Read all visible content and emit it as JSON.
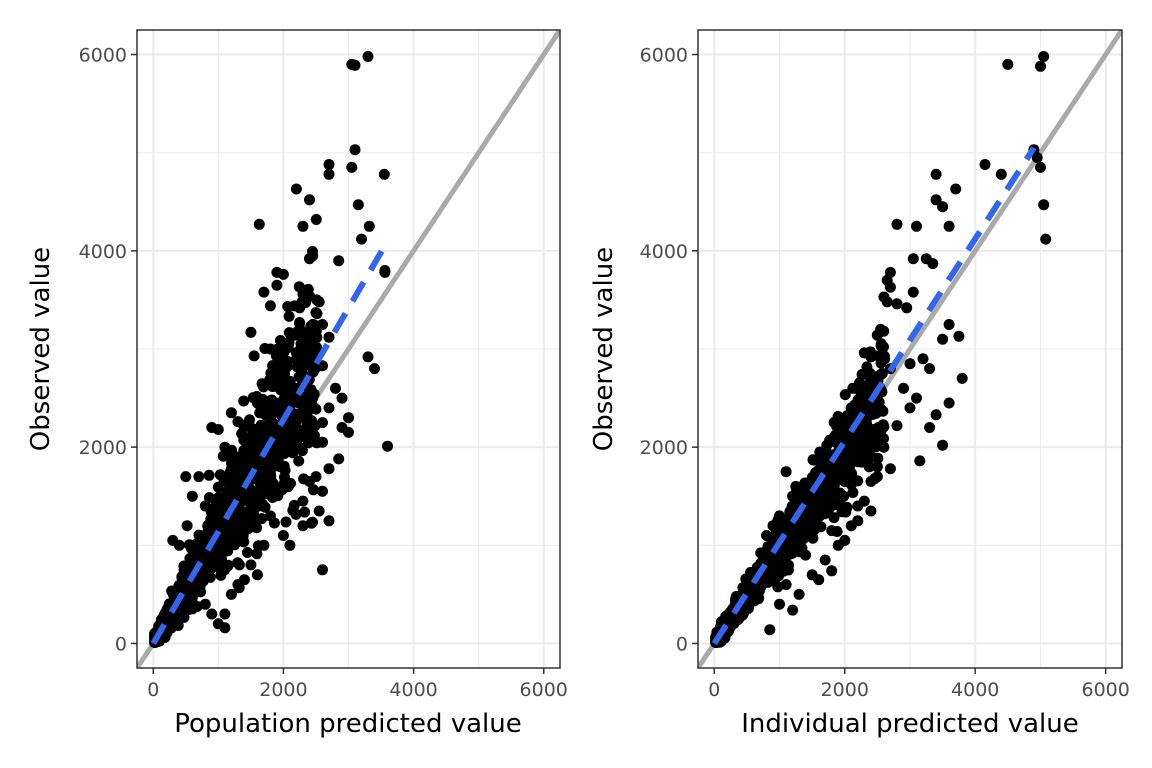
{
  "colors": {
    "points": "#000000",
    "identity_line": "#aaaaaa",
    "fit_line": "#3366ee",
    "grid": "#ebebeb",
    "panel_border": "#333333",
    "tick_text": "#4d4d4d"
  },
  "chart_data": [
    {
      "type": "scatter",
      "xlabel": "Population predicted value",
      "ylabel": "Observed value",
      "xlim": [
        -250,
        6250
      ],
      "ylim": [
        -250,
        6250
      ],
      "xticks": [
        0,
        2000,
        4000,
        6000
      ],
      "yticks": [
        0,
        2000,
        4000,
        6000
      ],
      "grid": true,
      "identity_line": true,
      "fit_line": {
        "style": "dashed",
        "x": [
          0,
          3600
        ],
        "y": [
          0,
          4100
        ]
      },
      "cloud": {
        "n": 1300,
        "x_max": 2500,
        "slope": 1.13,
        "spread": 0.2,
        "seed": 11
      },
      "points": [
        [
          3300,
          5980
        ],
        [
          3050,
          5900
        ],
        [
          3100,
          5890
        ],
        [
          3100,
          5030
        ],
        [
          3050,
          4850
        ],
        [
          2700,
          4880
        ],
        [
          2700,
          4780
        ],
        [
          3550,
          4780
        ],
        [
          2200,
          4630
        ],
        [
          3150,
          4470
        ],
        [
          2400,
          4520
        ],
        [
          3320,
          4250
        ],
        [
          1630,
          4270
        ],
        [
          2300,
          4250
        ],
        [
          3200,
          4120
        ],
        [
          2400,
          3920
        ],
        [
          2450,
          3950
        ],
        [
          2850,
          3900
        ],
        [
          3560,
          3800
        ],
        [
          3560,
          3780
        ],
        [
          1900,
          3780
        ],
        [
          2000,
          3760
        ],
        [
          1900,
          3650
        ],
        [
          1700,
          3580
        ],
        [
          2300,
          3560
        ],
        [
          2400,
          3540
        ],
        [
          2550,
          3480
        ],
        [
          2250,
          3420
        ],
        [
          1800,
          3440
        ],
        [
          2600,
          3250
        ],
        [
          1500,
          3170
        ],
        [
          2700,
          3120
        ],
        [
          2300,
          3100
        ],
        [
          1800,
          3000
        ],
        [
          2200,
          2960
        ],
        [
          1550,
          2930
        ],
        [
          3300,
          2920
        ],
        [
          3400,
          2800
        ],
        [
          2600,
          2830
        ],
        [
          2000,
          2850
        ],
        [
          2800,
          2600
        ],
        [
          2900,
          2500
        ],
        [
          1600,
          2450
        ],
        [
          2700,
          2400
        ],
        [
          3000,
          2300
        ],
        [
          2600,
          2250
        ],
        [
          2900,
          2200
        ],
        [
          3000,
          2150
        ],
        [
          3600,
          2010
        ],
        [
          2600,
          2050
        ],
        [
          2850,
          1880
        ],
        [
          2700,
          1780
        ],
        [
          2500,
          1700
        ],
        [
          2000,
          1620
        ],
        [
          2400,
          1650
        ],
        [
          2600,
          1550
        ],
        [
          2300,
          1450
        ],
        [
          2550,
          1350
        ],
        [
          2700,
          1250
        ],
        [
          2300,
          1200
        ],
        [
          2600,
          750
        ],
        [
          1000,
          920
        ],
        [
          1000,
          980
        ],
        [
          1100,
          760
        ],
        [
          2100,
          1000
        ],
        [
          500,
          1700
        ],
        [
          600,
          1500
        ],
        [
          700,
          1700
        ],
        [
          800,
          1400
        ],
        [
          900,
          2200
        ],
        [
          1000,
          2180
        ],
        [
          1200,
          2350
        ],
        [
          1300,
          2260
        ],
        [
          1100,
          2000
        ],
        [
          400,
          1000
        ],
        [
          300,
          1050
        ],
        [
          520,
          1200
        ],
        [
          1000,
          200
        ],
        [
          1100,
          300
        ],
        [
          1300,
          600
        ],
        [
          1500,
          800
        ],
        [
          1700,
          1000
        ],
        [
          1400,
          650
        ],
        [
          2000,
          1100
        ],
        [
          1800,
          1300
        ],
        [
          1200,
          500
        ],
        [
          1600,
          700
        ],
        [
          900,
          300
        ],
        [
          800,
          400
        ],
        [
          1100,
          160
        ]
      ]
    },
    {
      "type": "scatter",
      "xlabel": "Individual predicted value",
      "ylabel": "Observed value",
      "xlim": [
        -250,
        6250
      ],
      "ylim": [
        -250,
        6250
      ],
      "xticks": [
        0,
        2000,
        4000,
        6000
      ],
      "yticks": [
        0,
        2000,
        4000,
        6000
      ],
      "grid": true,
      "identity_line": true,
      "fit_line": {
        "style": "dashed",
        "x": [
          0,
          4900
        ],
        "y": [
          0,
          5050
        ]
      },
      "cloud": {
        "n": 1300,
        "x_max": 2600,
        "slope": 0.97,
        "spread": 0.12,
        "seed": 23
      },
      "points": [
        [
          5050,
          5980
        ],
        [
          4500,
          5900
        ],
        [
          5000,
          5880
        ],
        [
          4900,
          5030
        ],
        [
          5000,
          4850
        ],
        [
          4150,
          4880
        ],
        [
          4400,
          4780
        ],
        [
          3400,
          4780
        ],
        [
          3700,
          4630
        ],
        [
          5050,
          4470
        ],
        [
          3500,
          4450
        ],
        [
          3400,
          4520
        ],
        [
          4950,
          4950
        ],
        [
          3600,
          4250
        ],
        [
          2800,
          4270
        ],
        [
          3100,
          4250
        ],
        [
          5080,
          4120
        ],
        [
          3250,
          3920
        ],
        [
          3350,
          3870
        ],
        [
          3050,
          3920
        ],
        [
          2700,
          3780
        ],
        [
          2650,
          3700
        ],
        [
          2700,
          3630
        ],
        [
          3050,
          3580
        ],
        [
          2600,
          3530
        ],
        [
          2800,
          3460
        ],
        [
          2950,
          3420
        ],
        [
          2650,
          3480
        ],
        [
          2550,
          3200
        ],
        [
          3600,
          3250
        ],
        [
          3750,
          3130
        ],
        [
          3500,
          3100
        ],
        [
          2300,
          2960
        ],
        [
          2400,
          2920
        ],
        [
          3200,
          2900
        ],
        [
          3800,
          2700
        ],
        [
          2700,
          2800
        ],
        [
          3000,
          2850
        ],
        [
          3300,
          2800
        ],
        [
          2900,
          2600
        ],
        [
          3100,
          2500
        ],
        [
          2300,
          2450
        ],
        [
          3600,
          2450
        ],
        [
          3000,
          2400
        ],
        [
          3400,
          2330
        ],
        [
          2800,
          2220
        ],
        [
          3300,
          2200
        ],
        [
          3500,
          2020
        ],
        [
          3150,
          1860
        ],
        [
          2600,
          2000
        ],
        [
          2500,
          1800
        ],
        [
          2700,
          1780
        ],
        [
          2500,
          1700
        ],
        [
          2400,
          1650
        ],
        [
          2100,
          1620
        ],
        [
          2300,
          1450
        ],
        [
          2400,
          1350
        ],
        [
          2200,
          1250
        ],
        [
          2100,
          1200
        ],
        [
          1800,
          740
        ],
        [
          2000,
          1050
        ],
        [
          1100,
          1750
        ],
        [
          1200,
          1500
        ],
        [
          1000,
          1300
        ],
        [
          900,
          1200
        ],
        [
          1050,
          1000
        ],
        [
          800,
          1100
        ],
        [
          850,
          140
        ],
        [
          1200,
          340
        ],
        [
          1300,
          500
        ],
        [
          1500,
          700
        ],
        [
          1600,
          650
        ],
        [
          1700,
          850
        ],
        [
          1900,
          1000
        ],
        [
          1400,
          900
        ],
        [
          1000,
          400
        ],
        [
          1100,
          600
        ],
        [
          1800,
          1150
        ],
        [
          2200,
          1400
        ],
        [
          1250,
          1600
        ]
      ]
    }
  ]
}
